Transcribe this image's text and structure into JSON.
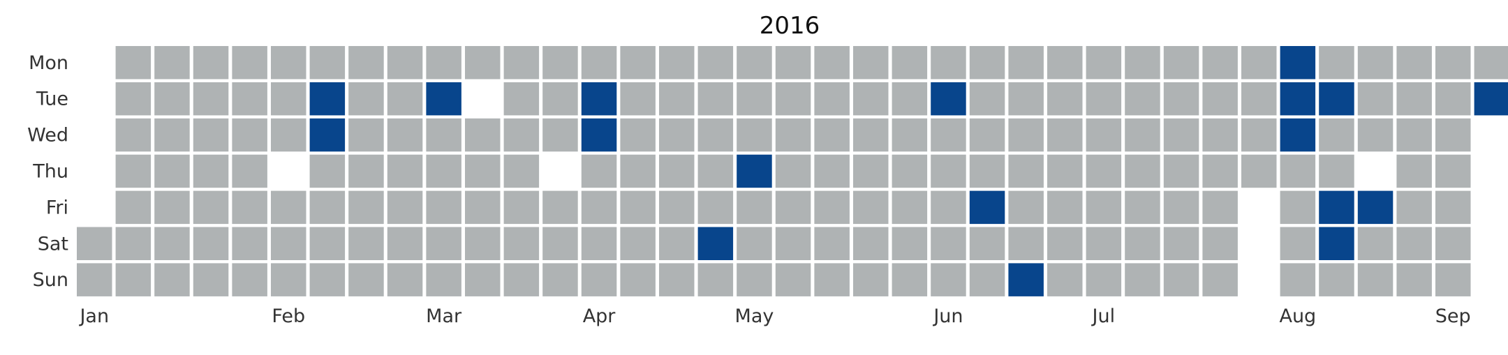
{
  "chart_data": {
    "type": "heatmap",
    "title": "2016",
    "year": 2016,
    "start_date": "2016-01-02",
    "end_date": "2016-09-06",
    "day_labels": [
      "Mon",
      "Tue",
      "Wed",
      "Thu",
      "Fri",
      "Sat",
      "Sun"
    ],
    "month_labels": [
      "Jan",
      "Feb",
      "Mar",
      "Apr",
      "May",
      "Jun",
      "Jul",
      "Aug",
      "Sep"
    ],
    "colors": {
      "empty": "#afb3b4",
      "event": "#08458c",
      "background": "#ffffff"
    },
    "missing_dates": [
      "2016-02-04",
      "2016-03-08",
      "2016-03-24",
      "2016-07-29",
      "2016-07-30",
      "2016-07-31",
      "2016-08-18"
    ],
    "event_dates": [
      "2016-02-09",
      "2016-02-10",
      "2016-03-01",
      "2016-03-29",
      "2016-03-30",
      "2016-04-23",
      "2016-04-28",
      "2016-05-31",
      "2016-06-10",
      "2016-06-19",
      "2016-08-01",
      "2016-08-02",
      "2016-08-03",
      "2016-08-09",
      "2016-08-12",
      "2016-08-13",
      "2016-08-19",
      "2016-09-06"
    ]
  }
}
